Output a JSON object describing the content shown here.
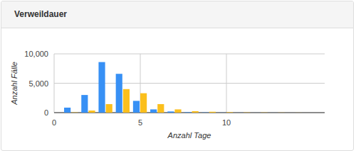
{
  "chart_data": {
    "type": "bar",
    "title": "Verweildauer",
    "x_label": "Anzahl Tage",
    "y_label": "Anzahl Fälle",
    "x": [
      1,
      2,
      3,
      4,
      5,
      6,
      7,
      8,
      9,
      10,
      11,
      12,
      13,
      14
    ],
    "series": [
      {
        "color": "#3790f5",
        "values": [
          850,
          3000,
          8600,
          6600,
          2000,
          550,
          200,
          80,
          40,
          20,
          10,
          5,
          5,
          0
        ]
      },
      {
        "color": "#fbbf1c",
        "values": [
          50,
          350,
          1450,
          4000,
          3300,
          1450,
          550,
          250,
          150,
          80,
          40,
          30,
          20,
          10
        ]
      }
    ],
    "xlim": [
      0,
      15.7
    ],
    "xticks": [
      0,
      5,
      10
    ],
    "ylim": [
      0,
      10000
    ],
    "yticks": [
      0,
      {
        "value": 5000,
        "label": "5,000"
      },
      {
        "value": 10000,
        "label": "10,000"
      }
    ],
    "grid": true
  }
}
